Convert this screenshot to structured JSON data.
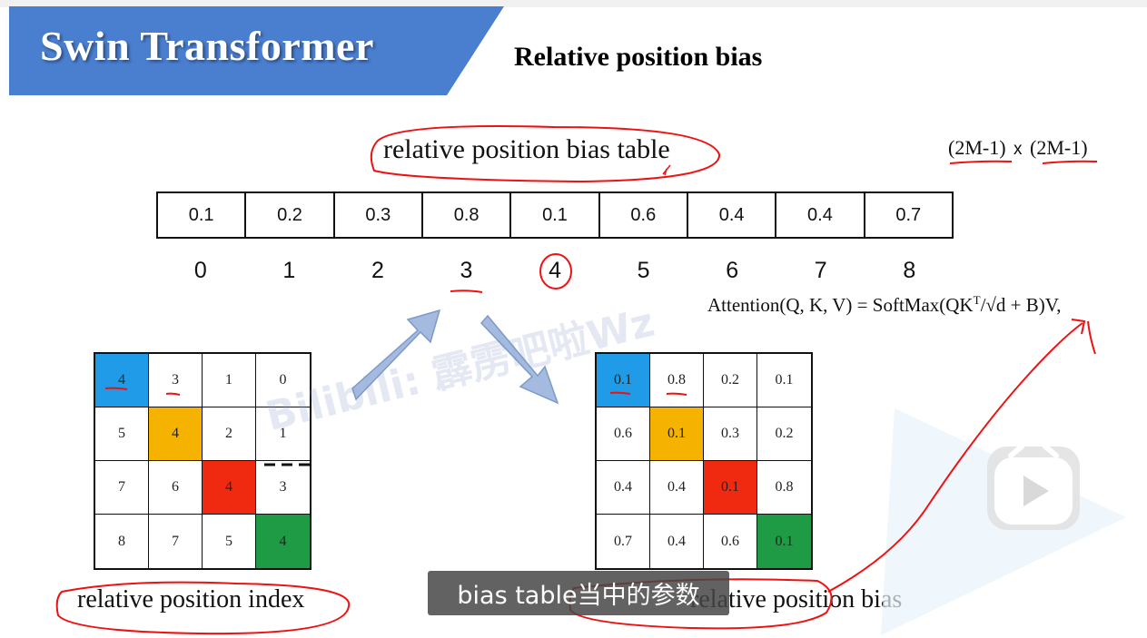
{
  "header": {
    "title": "Swin Transformer",
    "accent_color": "#4a7fd0"
  },
  "slide": {
    "title": "Relative position bias",
    "table_title": "relative position bias table",
    "size_note": {
      "left": "(2M-1)",
      "op": "x",
      "right": "(2M-1)"
    },
    "bias_table": [
      "0.1",
      "0.2",
      "0.3",
      "0.8",
      "0.1",
      "0.6",
      "0.4",
      "0.4",
      "0.7"
    ],
    "bias_indices": [
      "0",
      "1",
      "2",
      "3",
      "4",
      "5",
      "6",
      "7",
      "8"
    ],
    "formula": {
      "lhs": "Attention(Q, K, V) = SoftMax(QK",
      "sup": "T",
      "rhs": "/√d + B)V,"
    },
    "index_grid": {
      "rows": [
        [
          "4",
          "3",
          "1",
          "0"
        ],
        [
          "5",
          "4",
          "2",
          "1"
        ],
        [
          "7",
          "6",
          "4",
          "3"
        ],
        [
          "8",
          "7",
          "5",
          "4"
        ]
      ],
      "caption": "relative position index"
    },
    "bias_grid": {
      "rows": [
        [
          "0.1",
          "0.8",
          "0.2",
          "0.1"
        ],
        [
          "0.6",
          "0.1",
          "0.3",
          "0.2"
        ],
        [
          "0.4",
          "0.4",
          "0.1",
          "0.8"
        ],
        [
          "0.7",
          "0.4",
          "0.6",
          "0.1"
        ]
      ],
      "caption": "relative position bias"
    },
    "diagonal_colors": [
      "#1f9be8",
      "#f5b300",
      "#f02a10",
      "#1f9a45"
    ]
  },
  "player": {
    "subtitle": "bias table当中的参数",
    "watermark": "Bilibili: 霹雳吧啦Wz"
  },
  "icons": [
    "play-icon"
  ]
}
